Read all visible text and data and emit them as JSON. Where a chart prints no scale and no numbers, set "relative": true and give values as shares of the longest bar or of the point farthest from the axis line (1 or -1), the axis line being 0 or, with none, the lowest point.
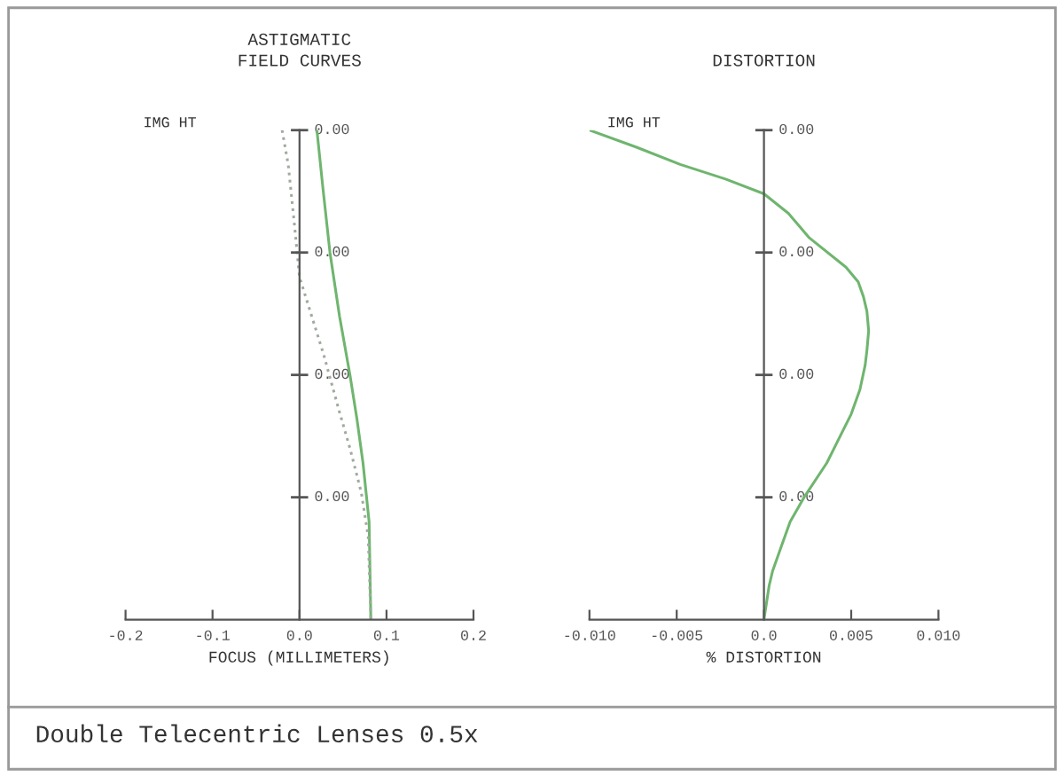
{
  "chart_data": [
    {
      "type": "line",
      "relative": true,
      "title": "ASTIGMATIC\nFIELD CURVES",
      "xlabel": "FOCUS (MILLIMETERS)",
      "ylabel": "IMG HT",
      "xlim": [
        -0.2,
        0.2
      ],
      "xticks": [
        {
          "value": -0.2,
          "label": "-0.2"
        },
        {
          "value": -0.1,
          "label": "-0.1"
        },
        {
          "value": 0,
          "label": "0.0"
        },
        {
          "value": 0.1,
          "label": "0.1"
        },
        {
          "value": 0.2,
          "label": "0.2"
        }
      ],
      "series": [
        {
          "color": "#6fb56f",
          "line_style": "solid",
          "x": [
            0.02,
            0.027,
            0.035,
            0.046,
            0.058,
            0.066,
            0.073,
            0.08,
            0.082
          ],
          "values": [
            1.0,
            0.88,
            0.75,
            0.62,
            0.5,
            0.41,
            0.32,
            0.2,
            0
          ]
        },
        {
          "color": "#a0aaa0",
          "line_style": "dotted",
          "x": [
            -0.02,
            -0.013,
            -0.006,
            0.0,
            0.014,
            0.028,
            0.045,
            0.058,
            0.071,
            0.079,
            0.082
          ],
          "values": [
            1.0,
            0.93,
            0.81,
            0.7,
            0.62,
            0.54,
            0.43,
            0.35,
            0.26,
            0.17,
            0
          ]
        }
      ],
      "annotations": [
        "0.00",
        "0.00",
        "0.00",
        "0.00"
      ]
    },
    {
      "type": "line",
      "relative": true,
      "title": "DISTORTION",
      "xlabel": "% DISTORTION",
      "ylabel": "IMG HT",
      "xlim": [
        -0.01,
        0.01
      ],
      "xticks": [
        {
          "value": -0.01,
          "label": "-0.010"
        },
        {
          "value": -0.005,
          "label": "-0.005"
        },
        {
          "value": 0,
          "label": "0.0"
        },
        {
          "value": 0.005,
          "label": "0.005"
        },
        {
          "value": 0.01,
          "label": "0.010"
        }
      ],
      "series": [
        {
          "color": "#6fb56f",
          "line_style": "solid",
          "x": [
            -0.01,
            -0.0073,
            -0.0048,
            -0.0022,
            0.0,
            0.0014,
            0.0026,
            0.0047,
            0.0054,
            0.0057,
            0.0059,
            0.006,
            0.0059,
            0.0058,
            0.0055,
            0.005,
            0.0043,
            0.0036,
            0.0023,
            0.0015,
            0.001,
            0.0005,
            0.0003,
            0.0
          ],
          "values": [
            1.0,
            0.965,
            0.93,
            0.9,
            0.87,
            0.83,
            0.78,
            0.72,
            0.69,
            0.66,
            0.63,
            0.59,
            0.55,
            0.52,
            0.47,
            0.42,
            0.37,
            0.32,
            0.25,
            0.2,
            0.15,
            0.1,
            0.07,
            0
          ]
        }
      ],
      "annotations": [
        "0.00",
        "0.00",
        "0.00",
        "0.00"
      ]
    },
    {
      "type": "other",
      "annotations": [
        "Double Telecentric Lenses 0.5x"
      ]
    }
  ]
}
